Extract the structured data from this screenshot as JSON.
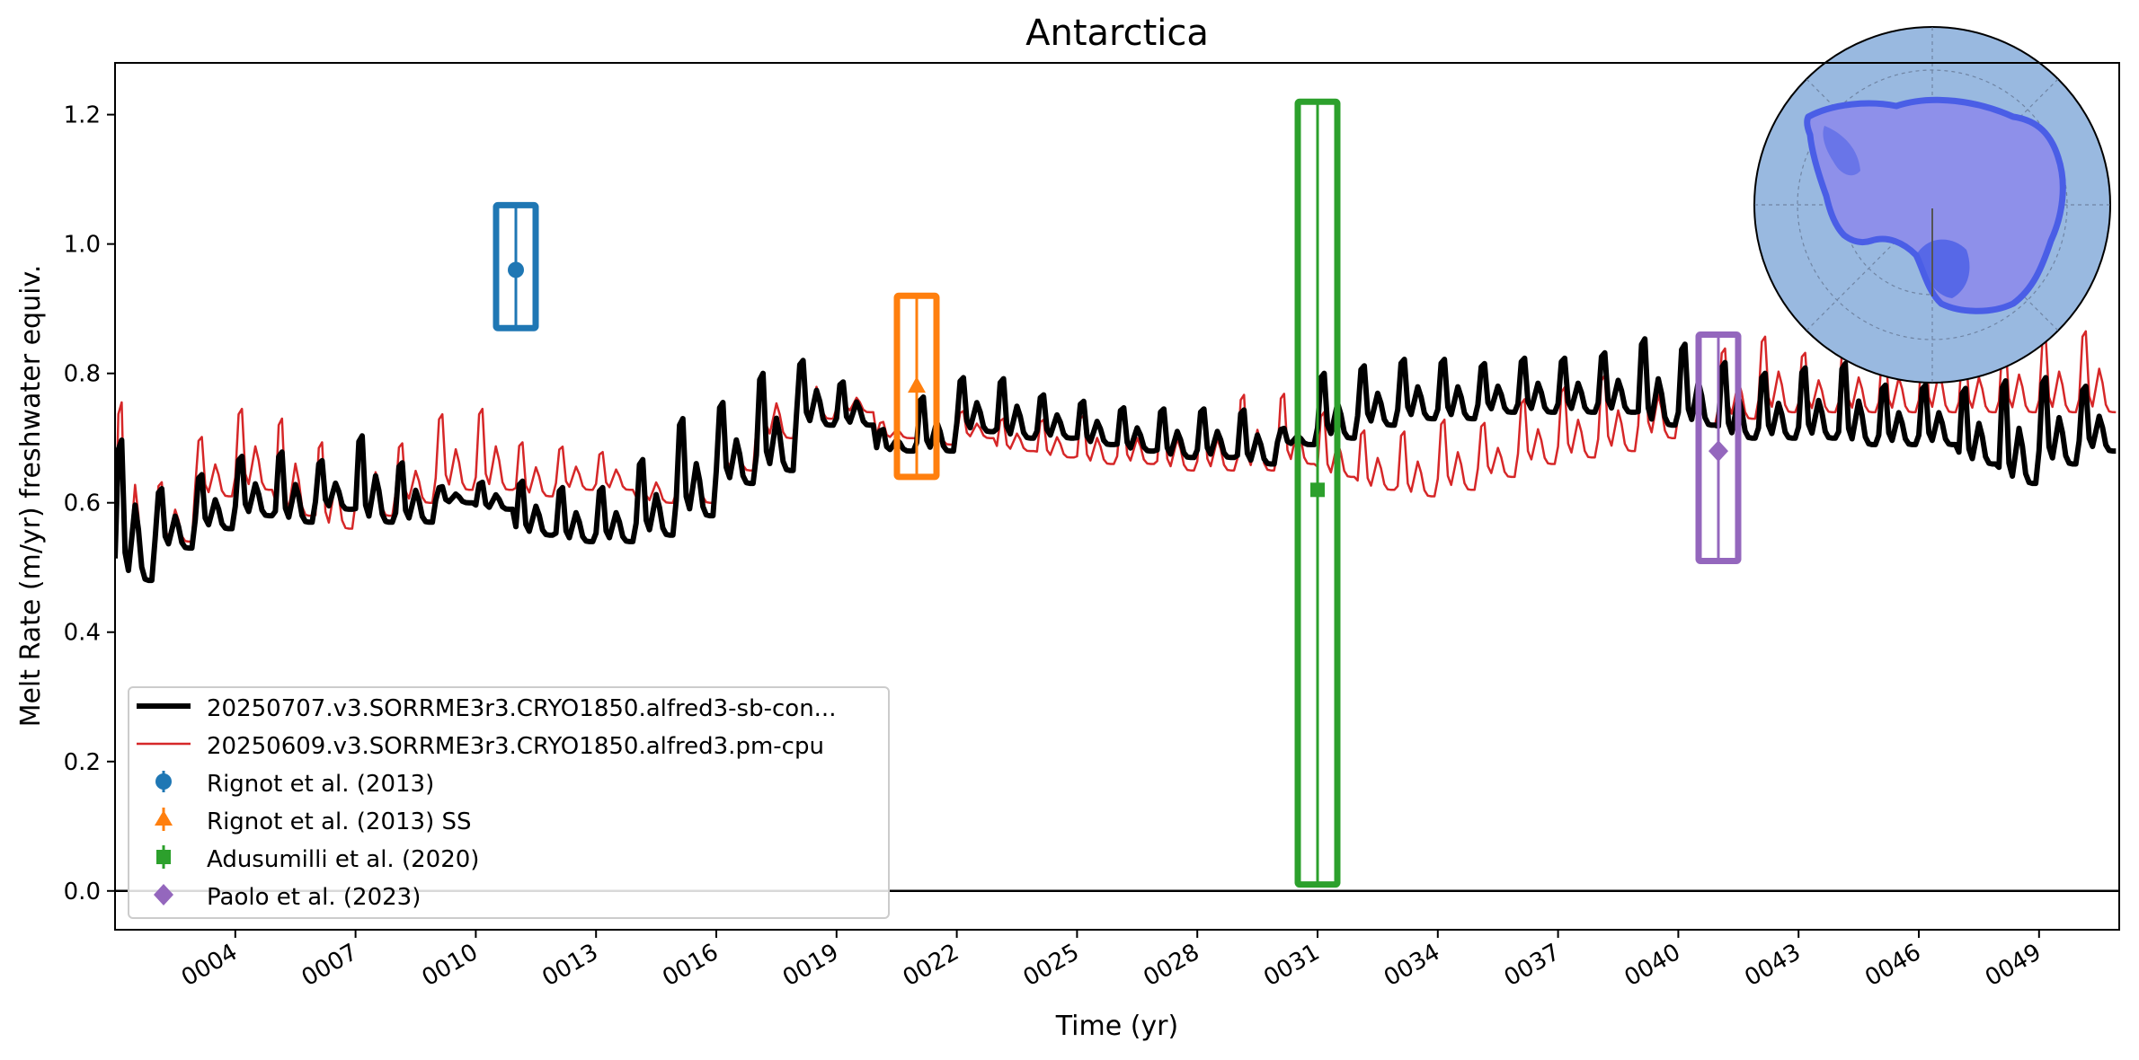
{
  "chart_data": {
    "type": "line",
    "title": "Antarctica",
    "xlabel": "Time (yr)",
    "ylabel": "Melt Rate (m/yr) freshwater equiv.",
    "xlim": [
      1.0,
      51.0
    ],
    "ylim": [
      -0.06,
      1.28
    ],
    "yticks": [
      0.0,
      0.2,
      0.4,
      0.6,
      0.8,
      1.0,
      1.2
    ],
    "ytick_labels": [
      "0.0",
      "0.2",
      "0.4",
      "0.6",
      "0.8",
      "1.0",
      "1.2"
    ],
    "xticks": [
      4,
      7,
      10,
      13,
      16,
      19,
      22,
      25,
      28,
      31,
      34,
      37,
      40,
      43,
      46,
      49
    ],
    "xtick_labels": [
      "0004",
      "0007",
      "0010",
      "0013",
      "0016",
      "0019",
      "0022",
      "0025",
      "0028",
      "0031",
      "0034",
      "0037",
      "0040",
      "0043",
      "0046",
      "0049"
    ],
    "hline": 0.0,
    "grid": false,
    "legend_position": "lower-left",
    "inset": "Antarctica polar map (top-right)",
    "series": [
      {
        "name": "20250707.v3.SORRME3r3.CRYO1850.alfred3-sb-con...",
        "color": "#000000",
        "style": "thick",
        "annual_peaks": [
          0.74,
          0.64,
          0.66,
          0.69,
          0.7,
          0.68,
          0.73,
          0.68,
          0.63,
          0.64,
          0.65,
          0.64,
          0.64,
          0.69,
          0.76,
          0.78,
          0.83,
          0.84,
          0.8,
          0.72,
          0.78,
          0.81,
          0.81,
          0.78,
          0.77,
          0.76,
          0.76,
          0.76,
          0.76,
          0.72,
          0.82,
          0.83,
          0.84,
          0.84,
          0.83,
          0.84,
          0.84,
          0.85,
          0.88,
          0.87,
          0.84,
          0.82,
          0.83,
          0.84,
          0.8,
          0.8,
          0.8,
          0.82,
          0.82,
          0.8
        ],
        "annual_troughs": [
          0.48,
          0.53,
          0.56,
          0.58,
          0.57,
          0.59,
          0.57,
          0.57,
          0.6,
          0.59,
          0.55,
          0.54,
          0.54,
          0.55,
          0.58,
          0.63,
          0.65,
          0.72,
          0.72,
          0.68,
          0.68,
          0.71,
          0.7,
          0.7,
          0.69,
          0.68,
          0.67,
          0.67,
          0.66,
          0.69,
          0.7,
          0.72,
          0.73,
          0.73,
          0.74,
          0.74,
          0.74,
          0.74,
          0.72,
          0.72,
          0.7,
          0.7,
          0.7,
          0.69,
          0.69,
          0.69,
          0.66,
          0.63,
          0.66,
          0.68
        ]
      },
      {
        "name": "20250609.v3.SORRME3r3.CRYO1850.alfred3.pm-cpu",
        "color": "#d62728",
        "style": "thin",
        "annual_peaks": [
          0.81,
          0.65,
          0.72,
          0.77,
          0.76,
          0.72,
          0.73,
          0.71,
          0.76,
          0.77,
          0.71,
          0.7,
          0.69,
          0.67,
          0.72,
          0.75,
          0.82,
          0.84,
          0.79,
          0.73,
          0.76,
          0.75,
          0.74,
          0.74,
          0.75,
          0.75,
          0.76,
          0.76,
          0.79,
          0.79,
          0.76,
          0.73,
          0.73,
          0.75,
          0.74,
          0.78,
          0.8,
          0.82,
          0.85,
          0.84,
          0.86,
          0.88,
          0.85,
          0.86,
          0.86,
          0.88,
          0.86,
          0.87,
          0.88,
          0.89
        ],
        "annual_troughs": [
          0.48,
          0.54,
          0.61,
          0.62,
          0.58,
          0.56,
          0.58,
          0.6,
          0.62,
          0.62,
          0.61,
          0.62,
          0.62,
          0.6,
          0.6,
          0.65,
          0.7,
          0.73,
          0.74,
          0.7,
          0.69,
          0.7,
          0.68,
          0.67,
          0.66,
          0.66,
          0.65,
          0.65,
          0.65,
          0.66,
          0.64,
          0.62,
          0.61,
          0.62,
          0.64,
          0.66,
          0.67,
          0.68,
          0.7,
          0.72,
          0.73,
          0.74,
          0.74,
          0.74,
          0.74,
          0.74,
          0.74,
          0.74,
          0.74,
          0.74
        ]
      }
    ],
    "observations": [
      {
        "name": "Rignot et al. (2013)",
        "color": "#1f77b4",
        "marker": "circle",
        "x": 11.0,
        "y": 0.96,
        "ymin": 0.87,
        "ymax": 1.06
      },
      {
        "name": "Rignot et al. (2013) SS",
        "color": "#ff7f0e",
        "marker": "triangle",
        "x": 21.0,
        "y": 0.78,
        "ymin": 0.64,
        "ymax": 0.92
      },
      {
        "name": "Adusumilli et al. (2020)",
        "color": "#2ca02c",
        "marker": "square",
        "x": 31.0,
        "y": 0.62,
        "ymin": 0.01,
        "ymax": 1.22
      },
      {
        "name": "Paolo et al. (2023)",
        "color": "#9467bd",
        "marker": "diamond",
        "x": 41.0,
        "y": 0.68,
        "ymin": 0.51,
        "ymax": 0.86
      }
    ]
  }
}
